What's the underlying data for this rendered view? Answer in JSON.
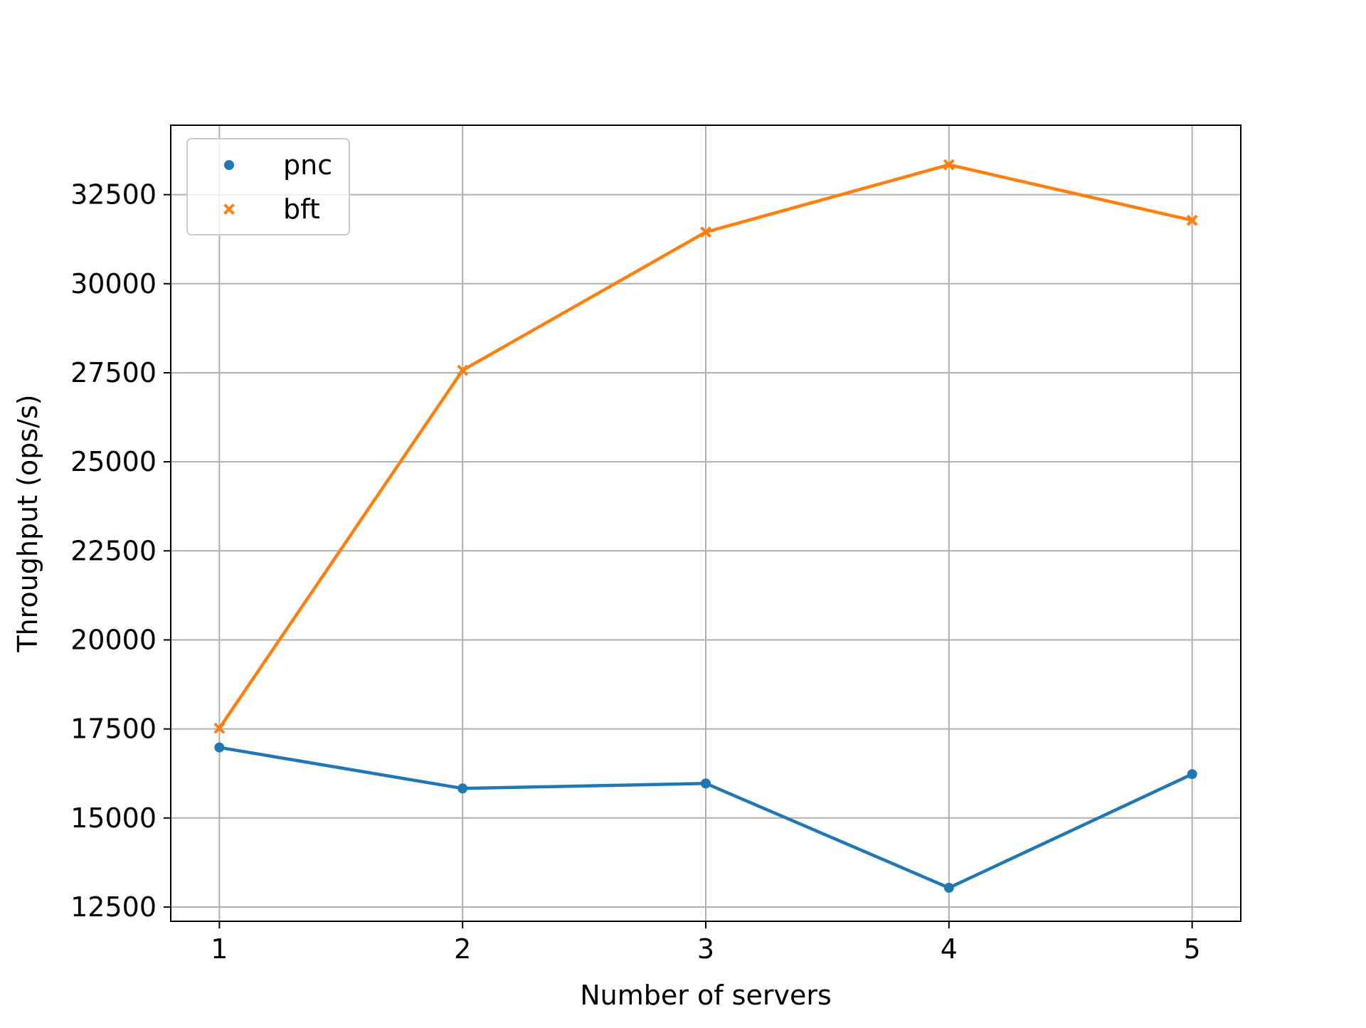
{
  "chart_data": {
    "type": "line",
    "title": "",
    "xlabel": "Number of servers",
    "ylabel": "Throughput (ops/s)",
    "x": [
      1,
      2,
      3,
      4,
      5
    ],
    "xlim": [
      0.8,
      5.2
    ],
    "ylim": [
      12100,
      34450
    ],
    "xticks": [
      1,
      2,
      3,
      4,
      5
    ],
    "yticks": [
      12500,
      15000,
      17500,
      20000,
      22500,
      25000,
      27500,
      30000,
      32500
    ],
    "grid": true,
    "legend_position": "top-left",
    "series": [
      {
        "name": "pnc",
        "marker": "circle",
        "color": "#1f77b4",
        "values": [
          16980,
          15830,
          15970,
          13040,
          16230
        ]
      },
      {
        "name": "bft",
        "marker": "x",
        "color": "#ff7f0e",
        "values": [
          17520,
          27570,
          31450,
          33340,
          31780
        ]
      }
    ]
  }
}
